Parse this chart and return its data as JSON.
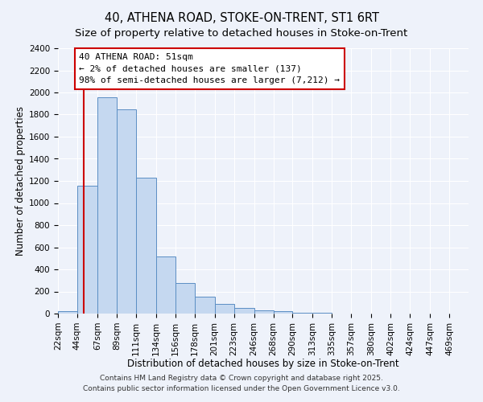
{
  "title": "40, ATHENA ROAD, STOKE-ON-TRENT, ST1 6RT",
  "subtitle": "Size of property relative to detached houses in Stoke-on-Trent",
  "xlabel": "Distribution of detached houses by size in Stoke-on-Trent",
  "ylabel": "Number of detached properties",
  "bin_labels": [
    "22sqm",
    "44sqm",
    "67sqm",
    "89sqm",
    "111sqm",
    "134sqm",
    "156sqm",
    "178sqm",
    "201sqm",
    "223sqm",
    "246sqm",
    "268sqm",
    "290sqm",
    "313sqm",
    "335sqm",
    "357sqm",
    "380sqm",
    "402sqm",
    "424sqm",
    "447sqm",
    "469sqm"
  ],
  "bin_edges": [
    22,
    44,
    67,
    89,
    111,
    134,
    156,
    178,
    201,
    223,
    246,
    268,
    290,
    313,
    335,
    357,
    380,
    402,
    424,
    447,
    469
  ],
  "bar_values": [
    25,
    1160,
    1960,
    1850,
    1230,
    520,
    275,
    150,
    85,
    50,
    30,
    20,
    10,
    5,
    3,
    2,
    1,
    1,
    0,
    0
  ],
  "bar_color": "#c5d8f0",
  "bar_edge_color": "#5b8ec4",
  "ylim": [
    0,
    2400
  ],
  "yticks": [
    0,
    200,
    400,
    600,
    800,
    1000,
    1200,
    1400,
    1600,
    1800,
    2000,
    2200,
    2400
  ],
  "property_line_x": 51,
  "property_line_color": "#cc0000",
  "annotation_title": "40 ATHENA ROAD: 51sqm",
  "annotation_line1": "← 2% of detached houses are smaller (137)",
  "annotation_line2": "98% of semi-detached houses are larger (7,212) →",
  "annotation_box_color": "#ffffff",
  "annotation_box_edge_color": "#cc0000",
  "footnote1": "Contains HM Land Registry data © Crown copyright and database right 2025.",
  "footnote2": "Contains public sector information licensed under the Open Government Licence v3.0.",
  "background_color": "#eef2fa",
  "grid_color": "#ffffff",
  "title_fontsize": 10.5,
  "subtitle_fontsize": 9.5,
  "axis_label_fontsize": 8.5,
  "tick_fontsize": 7.5,
  "annotation_fontsize": 8,
  "footnote_fontsize": 6.5
}
